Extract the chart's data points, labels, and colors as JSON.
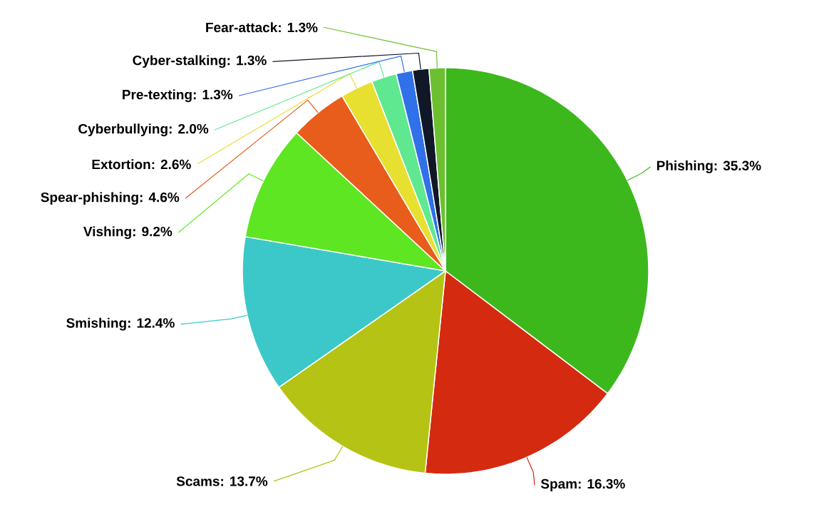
{
  "chart_data": {
    "type": "pie",
    "categories": [
      "Phishing",
      "Spam",
      "Scams",
      "Smishing",
      "Vishing",
      "Spear-phishing",
      "Extortion",
      "Cyberbullying",
      "Pre-texting",
      "Cyber-stalking",
      "Fear-attack"
    ],
    "values": [
      35.3,
      16.3,
      13.7,
      12.4,
      9.2,
      4.6,
      2.6,
      2.0,
      1.3,
      1.3,
      1.3
    ],
    "colors": [
      "#3cb81c",
      "#d42a10",
      "#b5c414",
      "#3cc8c8",
      "#5ee622",
      "#e85c1c",
      "#e8e030",
      "#60e890",
      "#3070e8",
      "#101828",
      "#6cc030"
    ],
    "value_labels": [
      ": 35.3%",
      ": 16.3%",
      ": 13.7%",
      ": 12.4%",
      ": 9.2%",
      ": 4.6%",
      ": 2.6%",
      ": 2.0%",
      ": 1.3%",
      ": 1.3%",
      ": 1.3%"
    ]
  }
}
